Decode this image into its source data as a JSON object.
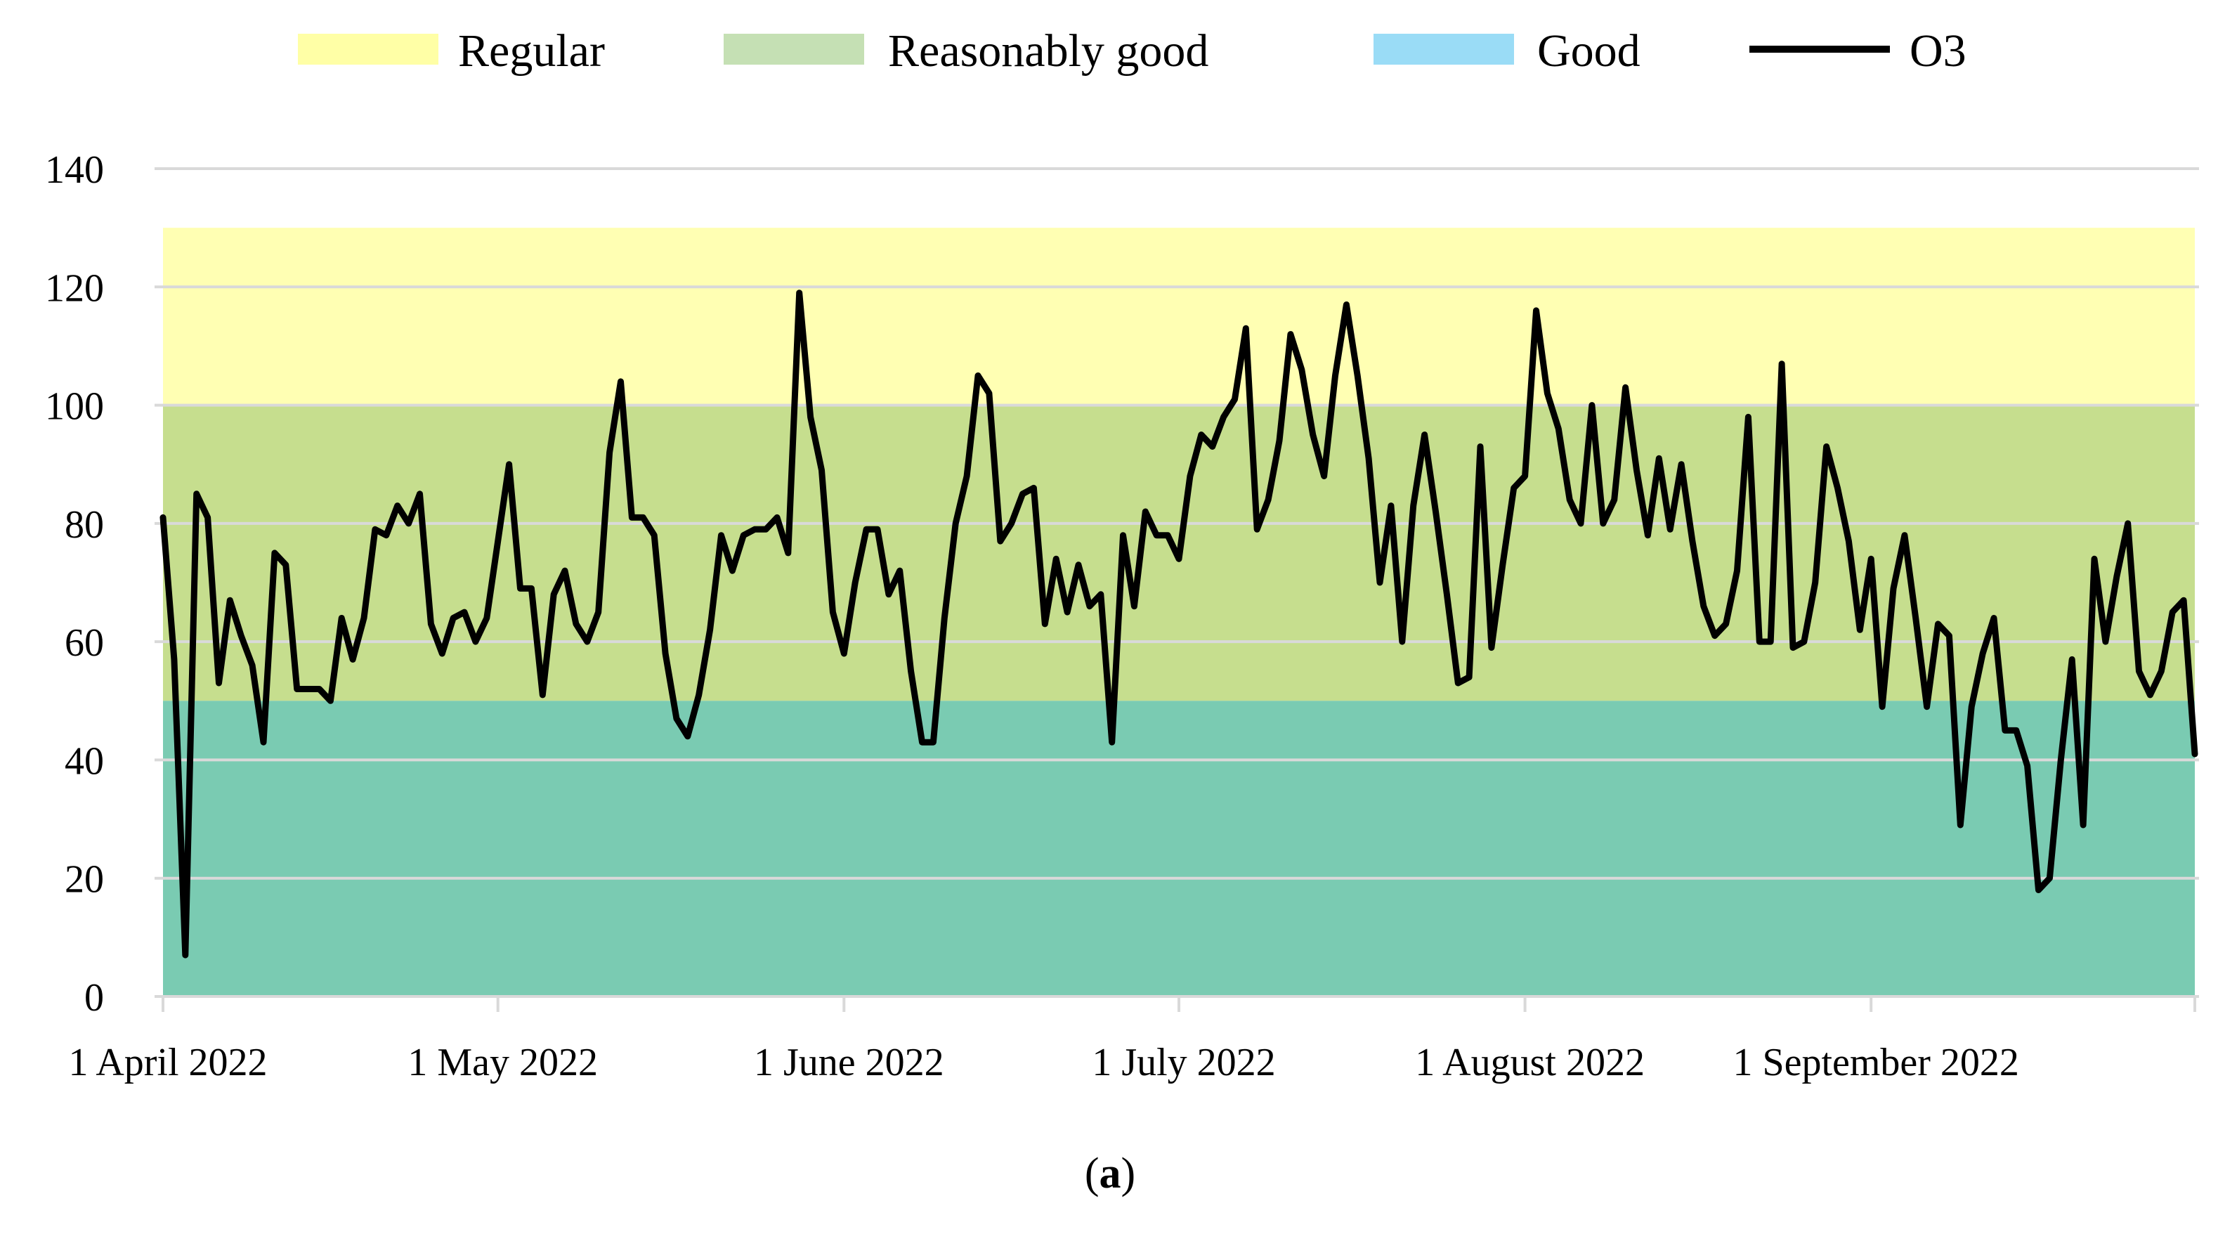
{
  "chart_data": {
    "type": "line",
    "title": "",
    "caption": "(a)",
    "caption_letter": "a",
    "xlabel": "",
    "ylabel": "",
    "ylim": [
      0,
      140
    ],
    "yticks": [
      0,
      20,
      40,
      60,
      80,
      100,
      120,
      140
    ],
    "ytick_labels": [
      "0",
      "20",
      "40",
      "60",
      "80",
      "100",
      "120",
      "140"
    ],
    "grid": "horizontal",
    "legend_position": "top",
    "x_start": "1 April 2022",
    "x_range_days": [
      0,
      182
    ],
    "xticks": [
      {
        "label": "1 April 2022",
        "day": 0
      },
      {
        "label": "1 May 2022",
        "day": 30
      },
      {
        "label": "1 June 2022",
        "day": 61
      },
      {
        "label": "1 July 2022",
        "day": 91
      },
      {
        "label": "1 August 2022",
        "day": 122
      },
      {
        "label": "1 September 2022",
        "day": 153
      }
    ],
    "bands": [
      {
        "name": "Regular",
        "from": 100,
        "to": 130,
        "color": "#FFFFB3"
      },
      {
        "name": "Reasonably good",
        "from": 50,
        "to": 100,
        "color": "#C6DE8E"
      },
      {
        "name": "Good",
        "from": 0,
        "to": 50,
        "color": "#7ACBB2"
      }
    ],
    "legend": [
      {
        "label": "Regular",
        "kind": "band",
        "color": "#FFFFA6"
      },
      {
        "label": "Reasonably good",
        "kind": "band",
        "color": "#C5E0B4"
      },
      {
        "label": "Good",
        "kind": "band",
        "color": "#9ADCF6"
      },
      {
        "label": "O3",
        "kind": "line",
        "color": "#000000"
      }
    ],
    "series": [
      {
        "name": "O3",
        "color": "#000000",
        "x_unit": "days since 1 April 2022",
        "x": [
          0,
          1,
          2,
          3,
          4,
          5,
          6,
          7,
          8,
          9,
          10,
          11,
          12,
          13,
          14,
          15,
          16,
          17,
          18,
          19,
          20,
          21,
          22,
          23,
          24,
          25,
          26,
          27,
          28,
          29,
          30,
          31,
          32,
          33,
          34,
          35,
          36,
          37,
          38,
          39,
          40,
          41,
          42,
          43,
          44,
          45,
          46,
          47,
          48,
          49,
          50,
          51,
          52,
          53,
          54,
          55,
          56,
          57,
          58,
          59,
          60,
          61,
          62,
          63,
          64,
          65,
          66,
          67,
          68,
          69,
          70,
          71,
          72,
          73,
          74,
          75,
          76,
          77,
          78,
          79,
          80,
          81,
          82,
          83,
          84,
          85,
          86,
          87,
          88,
          89,
          90,
          91,
          92,
          93,
          94,
          95,
          96,
          97,
          98,
          99,
          100,
          101,
          102,
          103,
          104,
          105,
          106,
          107,
          108,
          109,
          110,
          111,
          112,
          113,
          114,
          115,
          116,
          117,
          118,
          119,
          120,
          121,
          122,
          123,
          124,
          125,
          126,
          127,
          128,
          129,
          130,
          131,
          132,
          133,
          134,
          135,
          136,
          137,
          138,
          139,
          140,
          141,
          142,
          143,
          144,
          145,
          146,
          147,
          148,
          149,
          150,
          151,
          152,
          153,
          154,
          155,
          156,
          157,
          158,
          159,
          160,
          161,
          162,
          163,
          164,
          165,
          166,
          167,
          168,
          169,
          170,
          171,
          172,
          173,
          174,
          175,
          176,
          177,
          178,
          179,
          180,
          181,
          182
        ],
        "values": [
          81,
          57,
          7,
          85,
          81,
          53,
          67,
          61,
          56,
          43,
          75,
          73,
          52,
          52,
          52,
          50,
          64,
          57,
          64,
          79,
          78,
          83,
          80,
          85,
          63,
          58,
          64,
          65,
          60,
          64,
          77,
          90,
          69,
          69,
          51,
          68,
          72,
          63,
          60,
          65,
          92,
          104,
          81,
          81,
          78,
          58,
          47,
          44,
          51,
          62,
          78,
          72,
          78,
          79,
          79,
          81,
          75,
          119,
          98,
          89,
          65,
          58,
          70,
          79,
          79,
          68,
          72,
          55,
          43,
          43,
          64,
          80,
          88,
          105,
          102,
          77,
          80,
          85,
          86,
          63,
          74,
          65,
          73,
          66,
          68,
          43,
          78,
          66,
          82,
          78,
          78,
          74,
          88,
          95,
          93,
          98,
          101,
          113,
          79,
          84,
          94,
          112,
          106,
          95,
          88,
          105,
          117,
          105,
          91,
          70,
          83,
          60,
          83,
          95,
          82,
          68,
          53,
          54,
          93,
          59,
          73,
          86,
          88,
          116,
          102,
          96,
          84,
          80,
          100,
          80,
          84,
          103,
          89,
          78,
          91,
          79,
          90,
          77,
          66,
          61,
          63,
          72,
          98,
          60,
          60,
          107,
          59,
          60,
          70,
          93,
          86,
          77,
          62,
          74,
          49,
          69,
          78,
          64,
          49,
          63,
          61,
          29,
          49,
          58,
          64,
          45,
          45,
          39,
          18,
          20,
          40,
          57,
          29,
          74,
          60,
          71,
          80,
          55,
          51,
          55,
          65,
          67,
          41
        ]
      }
    ]
  }
}
